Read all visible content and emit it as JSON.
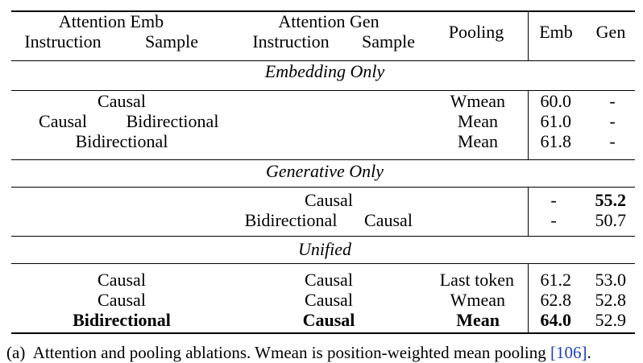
{
  "header": {
    "attn_emb": "Attention Emb",
    "attn_gen": "Attention Gen",
    "instruction": "Instruction",
    "sample": "Sample",
    "pooling": "Pooling",
    "emb": "Emb",
    "gen": "Gen"
  },
  "sections": {
    "embedding_only": "Embedding Only",
    "generative_only": "Generative Only",
    "unified": "Unified"
  },
  "rows": {
    "e1": {
      "emb_instr": "Causal",
      "pooling": "Wmean",
      "emb": "60.0",
      "gen": "-"
    },
    "e2": {
      "emb_instr": "Causal",
      "emb_sample": "Bidirectional",
      "pooling": "Mean",
      "emb": "61.0",
      "gen": "-"
    },
    "e3": {
      "emb_instr": "Bidirectional",
      "pooling": "Mean",
      "emb": "61.8",
      "gen": "-"
    },
    "g1": {
      "gen_instr": "Causal",
      "emb": "-",
      "gen": "55.2"
    },
    "g2": {
      "gen_instr": "Bidirectional",
      "gen_sample": "Causal",
      "emb": "-",
      "gen": "50.7"
    },
    "u1": {
      "emb_attn": "Causal",
      "gen_attn": "Causal",
      "pooling": "Last token",
      "emb": "61.2",
      "gen": "53.0"
    },
    "u2": {
      "emb_attn": "Causal",
      "gen_attn": "Causal",
      "pooling": "Wmean",
      "emb": "62.8",
      "gen": "52.8"
    },
    "u3": {
      "emb_attn": "Bidirectional",
      "gen_attn": "Causal",
      "pooling": "Mean",
      "emb": "64.0",
      "gen": "52.9"
    }
  },
  "caption": {
    "label": "(a)",
    "text": "Attention and pooling ablations. Wmean is position-weighted mean pooling ",
    "cite": "[106]",
    "end": "."
  }
}
